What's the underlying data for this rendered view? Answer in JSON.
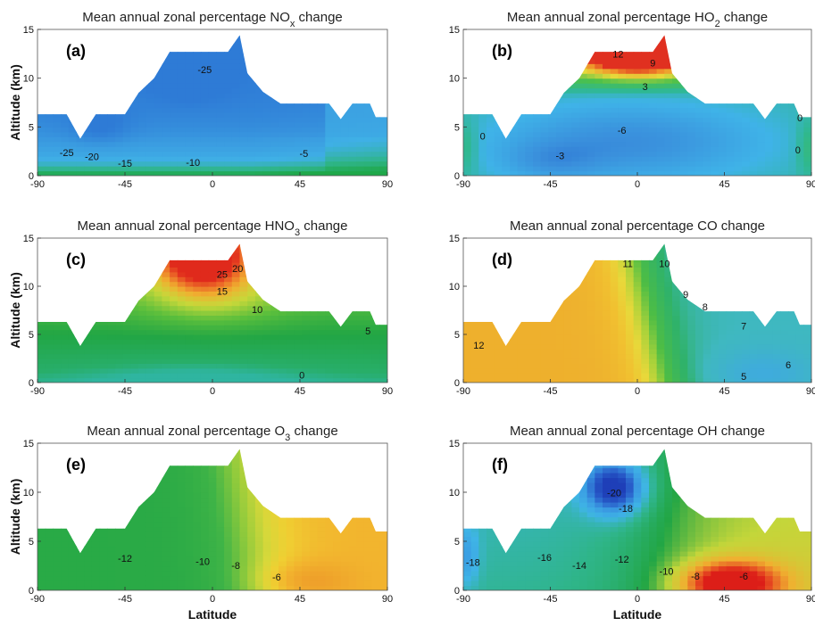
{
  "chart_data": [
    {
      "type": "heatmap",
      "panel": "(a)",
      "title": "Mean annual zonal percentage NOx change",
      "title_parts": {
        "pre": "Mean annual zonal percentage NO",
        "sub": "x",
        "post": " change"
      },
      "xlabel": "",
      "ylabel": "Altitude (km)",
      "xlim": [
        -90,
        90
      ],
      "ylim": [
        0,
        15
      ],
      "xticks": [
        "-90",
        "-45",
        "0",
        "45",
        "90"
      ],
      "yticks": [
        "0",
        "5",
        "10",
        "15"
      ],
      "stops": [
        [
          -28,
          "#2e7bd6"
        ],
        [
          -22,
          "#3a9be0"
        ],
        [
          -15,
          "#3fb0e6"
        ],
        [
          -9,
          "#2fb58a"
        ],
        [
          -4,
          "#1fa84a"
        ]
      ],
      "contours": [
        {
          "label": "-25",
          "x": -4,
          "y": 10.5
        },
        {
          "label": "-25",
          "x": -75,
          "y": 2.0
        },
        {
          "label": "-20",
          "x": -62,
          "y": 1.6
        },
        {
          "label": "-15",
          "x": -45,
          "y": 0.9
        },
        {
          "label": "-10",
          "x": -10,
          "y": 1.0
        },
        {
          "label": "-5",
          "x": 47,
          "y": 1.9
        }
      ]
    },
    {
      "type": "heatmap",
      "panel": "(b)",
      "title": "Mean annual zonal percentage HO2 change",
      "title_parts": {
        "pre": "Mean annual zonal percentage HO",
        "sub": "2",
        "post": " change"
      },
      "xlabel": "",
      "ylabel": "",
      "xlim": [
        -90,
        90
      ],
      "ylim": [
        0,
        15
      ],
      "xticks": [
        "-90",
        "-45",
        "0",
        "45",
        "90"
      ],
      "yticks": [
        "0",
        "5",
        "10",
        "15"
      ],
      "stops": [
        [
          -8,
          "#1e56c8"
        ],
        [
          -4,
          "#3a8fdc"
        ],
        [
          0,
          "#3fb3e8"
        ],
        [
          3,
          "#2fb88f"
        ],
        [
          6,
          "#4cc04a"
        ],
        [
          9,
          "#e6d93a"
        ],
        [
          12,
          "#f0902a"
        ],
        [
          14,
          "#e03020"
        ]
      ],
      "contours": [
        {
          "label": "12",
          "x": -10,
          "y": 12.1
        },
        {
          "label": "9",
          "x": 8,
          "y": 11.2
        },
        {
          "label": "3",
          "x": 4,
          "y": 8.8
        },
        {
          "label": "0",
          "x": -80,
          "y": 3.7
        },
        {
          "label": "-3",
          "x": -40,
          "y": 1.7
        },
        {
          "label": "-6",
          "x": -8,
          "y": 4.3
        },
        {
          "label": "0",
          "x": 83,
          "y": 2.3
        },
        {
          "label": "0",
          "x": 84,
          "y": 5.6
        }
      ]
    },
    {
      "type": "heatmap",
      "panel": "(c)",
      "title": "Mean annual zonal percentage HNO3 change",
      "title_parts": {
        "pre": "Mean annual zonal percentage HNO",
        "sub": "3",
        "post": "   change"
      },
      "xlabel": "",
      "ylabel": "Altitude (km)",
      "xlim": [
        -90,
        90
      ],
      "ylim": [
        0,
        15
      ],
      "xticks": [
        "-90",
        "-45",
        "0",
        "45",
        "90"
      ],
      "yticks": [
        "0",
        "5",
        "10",
        "15"
      ],
      "stops": [
        [
          -2,
          "#2fb5a0"
        ],
        [
          0,
          "#28ae6a"
        ],
        [
          5,
          "#22a645"
        ],
        [
          10,
          "#5cbf3c"
        ],
        [
          15,
          "#c7d83a"
        ],
        [
          20,
          "#f0b030"
        ],
        [
          25,
          "#ec6a28"
        ],
        [
          30,
          "#e02a1c"
        ]
      ],
      "contours": [
        {
          "label": "25",
          "x": 5,
          "y": 10.9
        },
        {
          "label": "20",
          "x": 13,
          "y": 11.5
        },
        {
          "label": "15",
          "x": 5,
          "y": 9.1
        },
        {
          "label": "10",
          "x": 23,
          "y": 7.2
        },
        {
          "label": "5",
          "x": 80,
          "y": 5.0
        },
        {
          "label": "0",
          "x": 46,
          "y": 0.4
        }
      ]
    },
    {
      "type": "heatmap",
      "panel": "(d)",
      "title": "Mean annual zonal percentage CO change",
      "xlabel": "",
      "ylabel": "",
      "xlim": [
        -90,
        90
      ],
      "ylim": [
        0,
        15
      ],
      "xticks": [
        "-90",
        "-45",
        "0",
        "45",
        "90"
      ],
      "yticks": [
        "0",
        "5",
        "10",
        "15"
      ],
      "stops": [
        [
          4,
          "#3fa7e6"
        ],
        [
          6,
          "#3fb8c0"
        ],
        [
          7,
          "#2fb26a"
        ],
        [
          8.5,
          "#4dbd45"
        ],
        [
          9.5,
          "#a8d23a"
        ],
        [
          10.5,
          "#e8d83a"
        ],
        [
          11.5,
          "#f1c030"
        ],
        [
          13,
          "#eca82c"
        ]
      ],
      "contours": [
        {
          "label": "11",
          "x": -5,
          "y": 12.0
        },
        {
          "label": "10",
          "x": 14,
          "y": 12.0
        },
        {
          "label": "9",
          "x": 25,
          "y": 8.8
        },
        {
          "label": "8",
          "x": 35,
          "y": 7.5
        },
        {
          "label": "7",
          "x": 55,
          "y": 5.5
        },
        {
          "label": "6",
          "x": 78,
          "y": 1.5
        },
        {
          "label": "5",
          "x": 55,
          "y": 0.3
        },
        {
          "label": "12",
          "x": -82,
          "y": 3.5
        }
      ]
    },
    {
      "type": "heatmap",
      "panel": "(e)",
      "title": "Mean annual zonal percentage O3 change",
      "title_parts": {
        "pre": "Mean annual zonal percentage  O",
        "sub": "3",
        "post": "  change"
      },
      "xlabel": "Latitude",
      "ylabel": "Altitude (km)",
      "xlim": [
        -90,
        90
      ],
      "ylim": [
        0,
        15
      ],
      "xticks": [
        "-90",
        "-45",
        "0",
        "45",
        "90"
      ],
      "yticks": [
        "0",
        "5",
        "10",
        "15"
      ],
      "stops": [
        [
          -13,
          "#22a645"
        ],
        [
          -11,
          "#3fb447"
        ],
        [
          -9.5,
          "#8fca3c"
        ],
        [
          -8,
          "#d6d83a"
        ],
        [
          -7,
          "#f0cf32"
        ],
        [
          -6,
          "#f2b42e"
        ],
        [
          -5,
          "#ee9e2a"
        ]
      ],
      "contours": [
        {
          "label": "-12",
          "x": -45,
          "y": 2.9
        },
        {
          "label": "-10",
          "x": -5,
          "y": 2.6
        },
        {
          "label": "-8",
          "x": 12,
          "y": 2.2
        },
        {
          "label": "-6",
          "x": 33,
          "y": 1.0
        }
      ]
    },
    {
      "type": "heatmap",
      "panel": "(f)",
      "title": "Mean annual zonal percentage OH change",
      "xlabel": "Latitude",
      "ylabel": "",
      "xlim": [
        -90,
        90
      ],
      "ylim": [
        0,
        15
      ],
      "xticks": [
        "-90",
        "-45",
        "0",
        "45",
        "90"
      ],
      "yticks": [
        "0",
        "5",
        "10",
        "15"
      ],
      "stops": [
        [
          -22,
          "#1e3fb8"
        ],
        [
          -20,
          "#2a62cc"
        ],
        [
          -18,
          "#3a9ae2"
        ],
        [
          -16,
          "#3fb5e6"
        ],
        [
          -14,
          "#2fb58a"
        ],
        [
          -12,
          "#22a645"
        ],
        [
          -10,
          "#c4d63a"
        ],
        [
          -8,
          "#f0b030"
        ],
        [
          -6,
          "#e64a22"
        ],
        [
          -5,
          "#dc1e18"
        ]
      ],
      "contours": [
        {
          "label": "-20",
          "x": -12,
          "y": 9.6
        },
        {
          "label": "-18",
          "x": -6,
          "y": 8.0
        },
        {
          "label": "-18",
          "x": -85,
          "y": 2.5
        },
        {
          "label": "-16",
          "x": -48,
          "y": 3.0
        },
        {
          "label": "-14",
          "x": -30,
          "y": 2.2
        },
        {
          "label": "-12",
          "x": -8,
          "y": 2.8
        },
        {
          "label": "-10",
          "x": 15,
          "y": 1.6
        },
        {
          "label": "-8",
          "x": 30,
          "y": 1.1
        },
        {
          "label": "-6",
          "x": 55,
          "y": 1.1
        }
      ]
    }
  ]
}
